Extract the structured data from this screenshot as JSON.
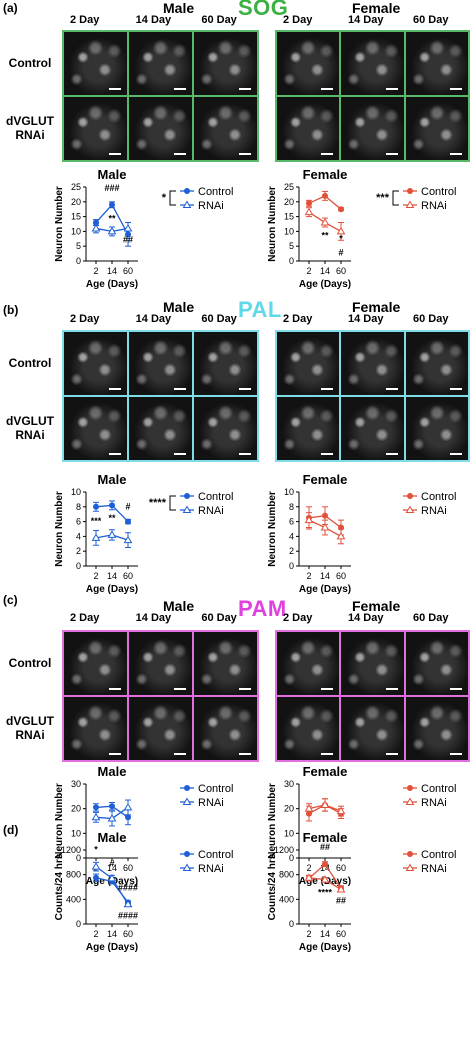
{
  "panels": [
    {
      "id": "a",
      "label": "(a)",
      "region": "SOG",
      "region_color": "#3cb043",
      "border_color": "#59b96a",
      "male_label": "Male",
      "female_label": "Female",
      "days": [
        "2 Day",
        "14 Day",
        "60 Day"
      ],
      "row_labels": [
        "Control",
        "dVGLUT\nRNAi"
      ]
    },
    {
      "id": "b",
      "label": "(b)",
      "region": "PAL",
      "region_color": "#5fd8e8",
      "border_color": "#7fdde8",
      "male_label": "Male",
      "female_label": "Female",
      "days": [
        "2 Day",
        "14 Day",
        "60 Day"
      ],
      "row_labels": [
        "Control",
        "dVGLUT\nRNAi"
      ]
    },
    {
      "id": "c",
      "label": "(c)",
      "region": "PAM",
      "region_color": "#e040e0",
      "border_color": "#e070e0",
      "male_label": "Male",
      "female_label": "Female",
      "days": [
        "2 Day",
        "14 Day",
        "60 Day"
      ],
      "row_labels": [
        "Control",
        "dVGLUT\nRNAi"
      ]
    }
  ],
  "panel_d_label": "(d)",
  "colors": {
    "male": "#1f5fd6",
    "female": "#e0503a"
  },
  "chart_data": [
    {
      "type": "line",
      "title": "Male",
      "xlabel": "Age (Days)",
      "ylabel": "Neuron Number",
      "categories": [
        "2",
        "14",
        "60"
      ],
      "ylim": [
        0,
        25
      ],
      "yticks": [
        0,
        5,
        10,
        15,
        20,
        25
      ],
      "series": [
        {
          "name": "Control",
          "values": [
            13,
            19,
            9
          ],
          "err": [
            1,
            1,
            4
          ]
        },
        {
          "name": "RNAi",
          "values": [
            11,
            10,
            11
          ],
          "err": [
            1.5,
            1.5,
            2
          ]
        }
      ],
      "bracket": "*",
      "annotations": [
        "###",
        "**",
        "##"
      ]
    },
    {
      "type": "line",
      "title": "Female",
      "xlabel": "Age (Days)",
      "ylabel": "Neuron Number",
      "categories": [
        "2",
        "14",
        "60"
      ],
      "ylim": [
        0,
        25
      ],
      "yticks": [
        0,
        5,
        10,
        15,
        20,
        25
      ],
      "series": [
        {
          "name": "Control",
          "values": [
            19.5,
            22,
            17.5
          ],
          "err": [
            1,
            1.5,
            0.5
          ]
        },
        {
          "name": "RNAi",
          "values": [
            16.5,
            13,
            10
          ],
          "err": [
            1.5,
            1.5,
            3
          ]
        }
      ],
      "bracket": "***",
      "annotations": [
        "**",
        "*",
        "#"
      ]
    },
    {
      "type": "line",
      "title": "Male",
      "xlabel": "Age (Days)",
      "ylabel": "Neuron Number",
      "categories": [
        "2",
        "14",
        "60"
      ],
      "ylim": [
        0,
        10
      ],
      "yticks": [
        0,
        2,
        4,
        6,
        8,
        10
      ],
      "series": [
        {
          "name": "Control",
          "values": [
            8,
            8.2,
            6
          ],
          "err": [
            0.6,
            0.6,
            0.3
          ]
        },
        {
          "name": "RNAi",
          "values": [
            3.8,
            4.2,
            3.5
          ],
          "err": [
            1,
            0.7,
            1
          ]
        }
      ],
      "bracket": "****",
      "annotations": [
        "#",
        "***",
        "**"
      ]
    },
    {
      "type": "line",
      "title": "Female",
      "xlabel": "Age (Days)",
      "ylabel": "Neuron Number",
      "categories": [
        "2",
        "14",
        "60"
      ],
      "ylim": [
        0,
        10
      ],
      "yticks": [
        0,
        2,
        4,
        6,
        8,
        10
      ],
      "series": [
        {
          "name": "Control",
          "values": [
            6.5,
            6.8,
            5.2
          ],
          "err": [
            1.5,
            1.2,
            1
          ]
        },
        {
          "name": "RNAi",
          "values": [
            6.2,
            5.2,
            4
          ],
          "err": [
            1,
            1,
            1
          ]
        }
      ],
      "bracket": "",
      "annotations": []
    },
    {
      "type": "line",
      "title": "Male",
      "xlabel": "Age (Days)",
      "ylabel": "Neuron Number",
      "categories": [
        "2",
        "14",
        "60"
      ],
      "ylim": [
        0,
        30
      ],
      "yticks": [
        0,
        10,
        20,
        30
      ],
      "series": [
        {
          "name": "Control",
          "values": [
            20.5,
            21,
            16.5
          ],
          "err": [
            1.5,
            1.5,
            3
          ]
        },
        {
          "name": "RNAi",
          "values": [
            16.5,
            16,
            20.5
          ],
          "err": [
            2,
            3,
            3
          ]
        }
      ],
      "bracket": "",
      "annotations": []
    },
    {
      "type": "line",
      "title": "Female",
      "xlabel": "Age (Days)",
      "ylabel": "Neuron Number",
      "categories": [
        "2",
        "14",
        "60"
      ],
      "ylim": [
        0,
        30
      ],
      "yticks": [
        0,
        10,
        20,
        30
      ],
      "series": [
        {
          "name": "Control",
          "values": [
            18,
            21.5,
            18
          ],
          "err": [
            3,
            2.5,
            2
          ]
        },
        {
          "name": "RNAi",
          "values": [
            20,
            21.5,
            19
          ],
          "err": [
            2,
            2.5,
            2
          ]
        }
      ],
      "bracket": "",
      "annotations": []
    },
    {
      "type": "line",
      "title": "Male",
      "xlabel": "Age (Days)",
      "ylabel": "Counts/24 hrs",
      "categories": [
        "2",
        "14",
        "60"
      ],
      "ylim": [
        0,
        1200
      ],
      "yticks": [
        0,
        400,
        800,
        1200
      ],
      "series": [
        {
          "name": "Control",
          "values": [
            750,
            690,
            350
          ],
          "err": [
            60,
            40,
            25
          ]
        },
        {
          "name": "RNAi",
          "values": [
            930,
            740,
            320
          ],
          "err": [
            70,
            50,
            30
          ]
        }
      ],
      "bracket": "",
      "annotations": [
        "*",
        "#",
        "####",
        "####"
      ]
    },
    {
      "type": "line",
      "title": "Female",
      "xlabel": "Age (Days)",
      "ylabel": "Counts/24 hrs",
      "categories": [
        "2",
        "14",
        "60"
      ],
      "ylim": [
        0,
        1200
      ],
      "yticks": [
        0,
        400,
        800,
        1200
      ],
      "series": [
        {
          "name": "Control",
          "values": [
            740,
            970,
            580
          ],
          "err": [
            40,
            40,
            40
          ]
        },
        {
          "name": "RNAi",
          "values": [
            750,
            720,
            560
          ],
          "err": [
            40,
            30,
            40
          ]
        }
      ],
      "bracket": "",
      "annotations": [
        "##",
        "****",
        "##"
      ]
    }
  ]
}
